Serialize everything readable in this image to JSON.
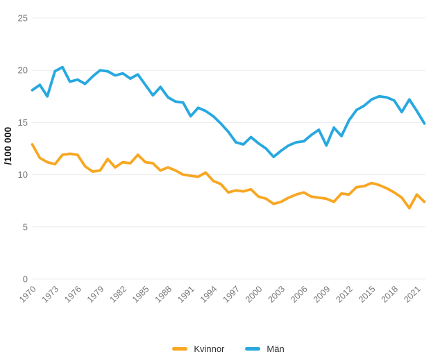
{
  "chart_data": {
    "type": "line",
    "title": "",
    "xlabel": "",
    "ylabel": "/100 000",
    "ylim": [
      0,
      25
    ],
    "y_ticks": [
      0,
      5,
      10,
      15,
      20,
      25
    ],
    "x_range": [
      1970,
      2022
    ],
    "x_tick_labels": [
      "1970",
      "1973",
      "1976",
      "1979",
      "1982",
      "1985",
      "1988",
      "1991",
      "1994",
      "1997",
      "2000",
      "2003",
      "2006",
      "2009",
      "2012",
      "2015",
      "2018",
      "2021"
    ],
    "grid": "horizontal",
    "legend_position": "bottom-center",
    "series": [
      {
        "name": "Kvinnor",
        "color": "#F7A722",
        "values": [
          12.9,
          11.6,
          11.2,
          11.0,
          11.9,
          12.0,
          11.9,
          10.8,
          10.3,
          10.4,
          11.5,
          10.7,
          11.2,
          11.1,
          11.9,
          11.2,
          11.1,
          10.4,
          10.7,
          10.4,
          10.0,
          9.9,
          9.8,
          10.2,
          9.4,
          9.1,
          8.3,
          8.5,
          8.4,
          8.6,
          7.9,
          7.7,
          7.2,
          7.4,
          7.8,
          8.1,
          8.3,
          7.9,
          7.8,
          7.7,
          7.4,
          8.2,
          8.1,
          8.8,
          8.9,
          9.2,
          9.0,
          8.7,
          8.3,
          7.8,
          6.8,
          8.1,
          7.4
        ]
      },
      {
        "name": "Män",
        "color": "#27A8DF",
        "values": [
          18.1,
          18.6,
          17.5,
          19.9,
          20.3,
          18.9,
          19.1,
          18.7,
          19.4,
          20.0,
          19.9,
          19.5,
          19.7,
          19.2,
          19.6,
          18.6,
          17.6,
          18.4,
          17.4,
          17.0,
          16.9,
          15.6,
          16.4,
          16.1,
          15.6,
          14.9,
          14.1,
          13.1,
          12.9,
          13.6,
          13.0,
          12.5,
          11.7,
          12.3,
          12.8,
          13.1,
          13.2,
          13.8,
          14.3,
          12.8,
          14.5,
          13.7,
          15.2,
          16.2,
          16.6,
          17.2,
          17.5,
          17.4,
          17.1,
          16.0,
          17.2,
          16.1,
          14.9
        ]
      }
    ]
  },
  "colors": {
    "grid": "#ececec",
    "tick_text": "#767676",
    "axis_title_text": "#0f0f0f",
    "background": "#ffffff"
  }
}
